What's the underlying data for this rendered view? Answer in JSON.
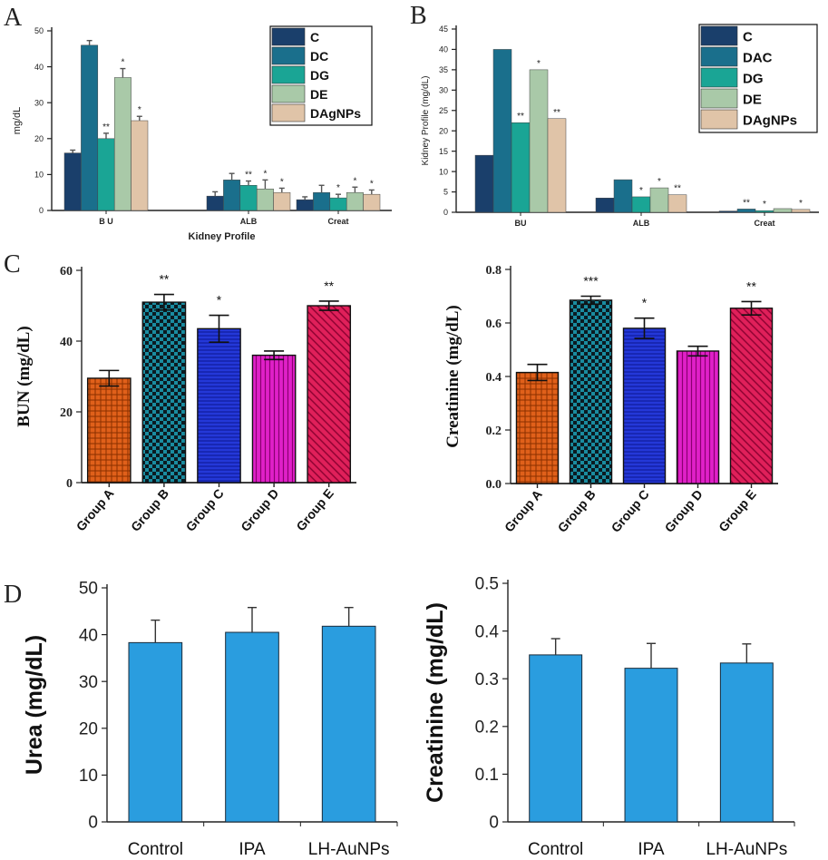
{
  "panel_letters": [
    "A",
    "B",
    "C",
    "D"
  ],
  "colors": {
    "C": "#1a3f6b",
    "DC": "#1a6f8c",
    "DG": "#1aa595",
    "DE": "#a9c9a8",
    "DAgNPs": "#e0c4a8",
    "groupA": "#e0601a",
    "groupB": "#1a8ca0",
    "groupC": "#2438d8",
    "groupD": "#e020c8",
    "groupE": "#e0205a",
    "panelD": "#2a9ddf",
    "axis": "#222222"
  },
  "chart_data": [
    {
      "id": "A",
      "type": "bar",
      "categories": [
        "B U",
        "ALB",
        "Creat"
      ],
      "xlabel": "Kidney Profile",
      "ylabel": "mg/dL",
      "ylim": [
        0,
        50
      ],
      "yticks": [
        "0",
        "10",
        "20",
        "30",
        "40",
        "50"
      ],
      "legend": [
        "C",
        "DC",
        "DG",
        "DE",
        "DAgNPs"
      ],
      "series": [
        {
          "name": "C",
          "values": [
            16,
            4,
            3
          ],
          "errors": [
            0.8,
            1.2,
            0.8
          ]
        },
        {
          "name": "DC",
          "values": [
            46,
            8.5,
            5
          ],
          "errors": [
            1.3,
            1.8,
            2
          ]
        },
        {
          "name": "DG",
          "values": [
            20,
            7,
            3.5
          ],
          "errors": [
            1.5,
            1.2,
            1
          ]
        },
        {
          "name": "DE",
          "values": [
            37,
            6,
            5
          ],
          "errors": [
            2.5,
            2.5,
            1.5
          ]
        },
        {
          "name": "DAgNPs",
          "values": [
            25,
            5,
            4.5
          ],
          "errors": [
            1.2,
            1.2,
            1.2
          ]
        }
      ],
      "significance": [
        [
          "",
          "",
          ""
        ],
        [
          "",
          "",
          ""
        ],
        [
          "**",
          "**",
          "*"
        ],
        [
          "*",
          "*",
          "*"
        ],
        [
          "*",
          "*",
          "*"
        ]
      ]
    },
    {
      "id": "B",
      "type": "bar",
      "categories": [
        "BU",
        "ALB",
        "Creat"
      ],
      "xlabel": "",
      "ylabel": "Kidney Profile (mg/dL)",
      "ylim": [
        0,
        45
      ],
      "yticks": [
        "0",
        "5",
        "10",
        "15",
        "20",
        "25",
        "30",
        "35",
        "40",
        "45"
      ],
      "legend": [
        "C",
        "DAC",
        "DG",
        "DE",
        "DAgNPs"
      ],
      "series": [
        {
          "name": "C",
          "values": [
            14,
            3.5,
            0.3
          ]
        },
        {
          "name": "DAC",
          "values": [
            40,
            8,
            0.8
          ]
        },
        {
          "name": "DG",
          "values": [
            22,
            3.8,
            0.4
          ]
        },
        {
          "name": "DE",
          "values": [
            35,
            6,
            0.9
          ]
        },
        {
          "name": "DAgNPs",
          "values": [
            23,
            4.3,
            0.7
          ]
        }
      ],
      "significance": [
        [
          "",
          "",
          ""
        ],
        [
          "",
          "",
          "**"
        ],
        [
          "**",
          "*",
          "*"
        ],
        [
          "*",
          "*",
          ""
        ],
        [
          "**",
          "**",
          "*"
        ]
      ]
    },
    {
      "id": "C1",
      "type": "bar",
      "categories": [
        "Group A",
        "Group B",
        "Group C",
        "Group D",
        "Group E"
      ],
      "xlabel": "",
      "ylabel": "BUN (mg/dL)",
      "ylim": [
        0,
        60
      ],
      "yticks": [
        "0",
        "20",
        "40",
        "60"
      ],
      "values": [
        29.5,
        51,
        43.5,
        36,
        50
      ],
      "errors": [
        2.2,
        2.2,
        3.8,
        1.2,
        1.3
      ],
      "significance": [
        "",
        "**",
        "*",
        "",
        "**"
      ]
    },
    {
      "id": "C2",
      "type": "bar",
      "categories": [
        "Group A",
        "Group B",
        "Group C",
        "Group D",
        "Group E"
      ],
      "xlabel": "",
      "ylabel": "Creatinine (mg/dL)",
      "ylim": [
        0,
        0.8
      ],
      "yticks": [
        "0.0",
        "0.2",
        "0.4",
        "0.6",
        "0.8"
      ],
      "values": [
        0.415,
        0.685,
        0.58,
        0.495,
        0.655
      ],
      "errors": [
        0.03,
        0.015,
        0.038,
        0.018,
        0.025
      ],
      "significance": [
        "",
        "***",
        "*",
        "",
        "**"
      ]
    },
    {
      "id": "D1",
      "type": "bar",
      "categories": [
        "Control",
        "IPA",
        "LH-AuNPs"
      ],
      "xlabel": "",
      "ylabel": "Urea  (mg/dL)",
      "ylim": [
        0,
        50
      ],
      "yticks": [
        "0",
        "10",
        "20",
        "30",
        "40",
        "50"
      ],
      "values": [
        38.3,
        40.5,
        41.8
      ],
      "errors": [
        4.8,
        5.3,
        4
      ]
    },
    {
      "id": "D2",
      "type": "bar",
      "categories": [
        "Control",
        "IPA",
        "LH-AuNPs"
      ],
      "xlabel": "",
      "ylabel": "Creatinine  (mg/dL)",
      "ylim": [
        0,
        0.5
      ],
      "yticks": [
        "0",
        "0.1",
        "0.2",
        "0.3",
        "0.4",
        "0.5"
      ],
      "values": [
        0.35,
        0.322,
        0.333
      ],
      "errors": [
        0.034,
        0.052,
        0.04
      ]
    }
  ]
}
